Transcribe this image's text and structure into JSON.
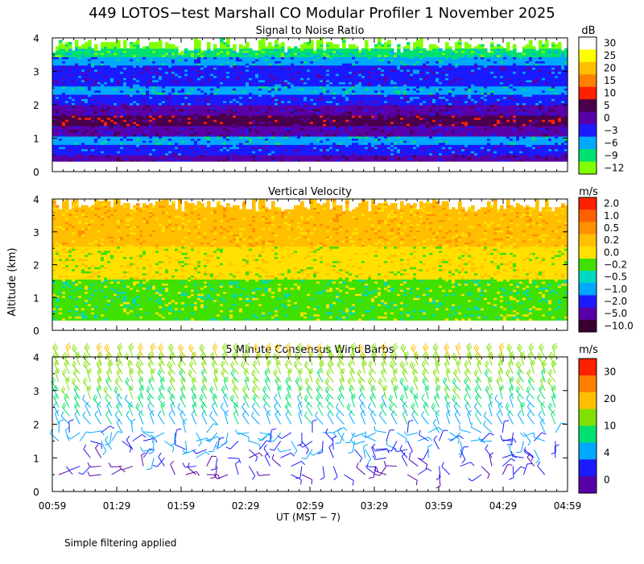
{
  "chart_data": [
    {
      "type": "heatmap",
      "title": "Signal to Noise Ratio",
      "ylabel": "Altitude (km)",
      "ylim": [
        0,
        4
      ],
      "yticks": [
        "0",
        "1",
        "2",
        "3",
        "4"
      ],
      "colorbar": {
        "unit": "dB",
        "labels": [
          "30",
          "25",
          "20",
          "15",
          "10",
          "5",
          "0",
          "−3",
          "−6",
          "−9",
          "−12"
        ],
        "colors": [
          "#ffffff",
          "#ffff00",
          "#ffbf00",
          "#ff8000",
          "#ff2000",
          "#4a004a",
          "#5a00a8",
          "#1a1aff",
          "#00a8ff",
          "#00e070",
          "#80ff00"
        ]
      },
      "profile": [
        {
          "alt": 0.3,
          "color": "#5a00a8"
        },
        {
          "alt": 0.6,
          "color": "#1a1aff"
        },
        {
          "alt": 0.9,
          "color": "#00a8ff"
        },
        {
          "alt": 1.2,
          "color": "#5a00a8"
        },
        {
          "alt": 1.5,
          "color": "#4a004a"
        },
        {
          "alt": 1.8,
          "color": "#5a00a8"
        },
        {
          "alt": 2.1,
          "color": "#1a1aff"
        },
        {
          "alt": 2.4,
          "color": "#00a8ff"
        },
        {
          "alt": 2.7,
          "color": "#1a1aff"
        },
        {
          "alt": 3.0,
          "color": "#1a1aff"
        },
        {
          "alt": 3.3,
          "color": "#00a8ff"
        },
        {
          "alt": 3.55,
          "color": "#00e070"
        },
        {
          "alt": 3.8,
          "color": "#80ff00"
        }
      ]
    },
    {
      "type": "heatmap",
      "title": "Vertical Velocity",
      "ylabel": "Altitude (km)",
      "ylim": [
        0,
        4
      ],
      "yticks": [
        "0",
        "1",
        "2",
        "3",
        "4"
      ],
      "colorbar": {
        "unit": "m/s",
        "labels": [
          "2.0",
          "1.0",
          "0.5",
          "0.2",
          "0.0",
          "−0.2",
          "−0.5",
          "−1.0",
          "−2.0",
          "−5.0",
          "−10.0"
        ],
        "colors": [
          "#ff2000",
          "#ff6000",
          "#ff9000",
          "#ffbf00",
          "#ffe000",
          "#40e000",
          "#00d8c0",
          "#00a8ff",
          "#1a1aff",
          "#5a00a8",
          "#3a0030"
        ]
      },
      "profile": [
        {
          "alt": 0.3,
          "color": "#40e000"
        },
        {
          "alt": 0.8,
          "color": "#40e000"
        },
        {
          "alt": 1.3,
          "color": "#40e000"
        },
        {
          "alt": 1.8,
          "color": "#ffe000"
        },
        {
          "alt": 2.3,
          "color": "#ffe000"
        },
        {
          "alt": 2.8,
          "color": "#ffbf00"
        },
        {
          "alt": 3.3,
          "color": "#ffbf00"
        },
        {
          "alt": 3.7,
          "color": "#ffbf00"
        }
      ]
    },
    {
      "type": "wind_barbs",
      "title": "5 Minute Consensus Wind Barbs",
      "ylabel": "Altitude (km)",
      "ylim": [
        0,
        4
      ],
      "yticks": [
        "0",
        "1",
        "2",
        "3",
        "4"
      ],
      "colorbar": {
        "unit": "m/s",
        "labels": [
          "30",
          "20",
          "10",
          "4",
          "0"
        ],
        "colors": [
          "#ff2000",
          "#ff8000",
          "#ffbf00",
          "#80e000",
          "#00e070",
          "#00a8ff",
          "#1a1aff",
          "#5a00a8"
        ]
      },
      "speed_profile_mps": [
        {
          "alt": 0.5,
          "speed": 2
        },
        {
          "alt": 1.0,
          "speed": 3
        },
        {
          "alt": 1.5,
          "speed": 4
        },
        {
          "alt": 2.0,
          "speed": 6
        },
        {
          "alt": 2.5,
          "speed": 8
        },
        {
          "alt": 3.0,
          "speed": 10
        },
        {
          "alt": 3.5,
          "speed": 12
        },
        {
          "alt": 4.0,
          "speed": 15
        }
      ]
    }
  ],
  "figure": {
    "title": "449 LOTOS−test Marshall CO Modular Profiler  1 November 2025",
    "ylabel": "Altitude (km)",
    "xlabel": "UT  (MST − 7)",
    "xticks": [
      "00:59",
      "01:29",
      "01:59",
      "02:29",
      "02:59",
      "03:29",
      "03:59",
      "04:29",
      "04:59"
    ],
    "footer": "Simple filtering applied"
  }
}
